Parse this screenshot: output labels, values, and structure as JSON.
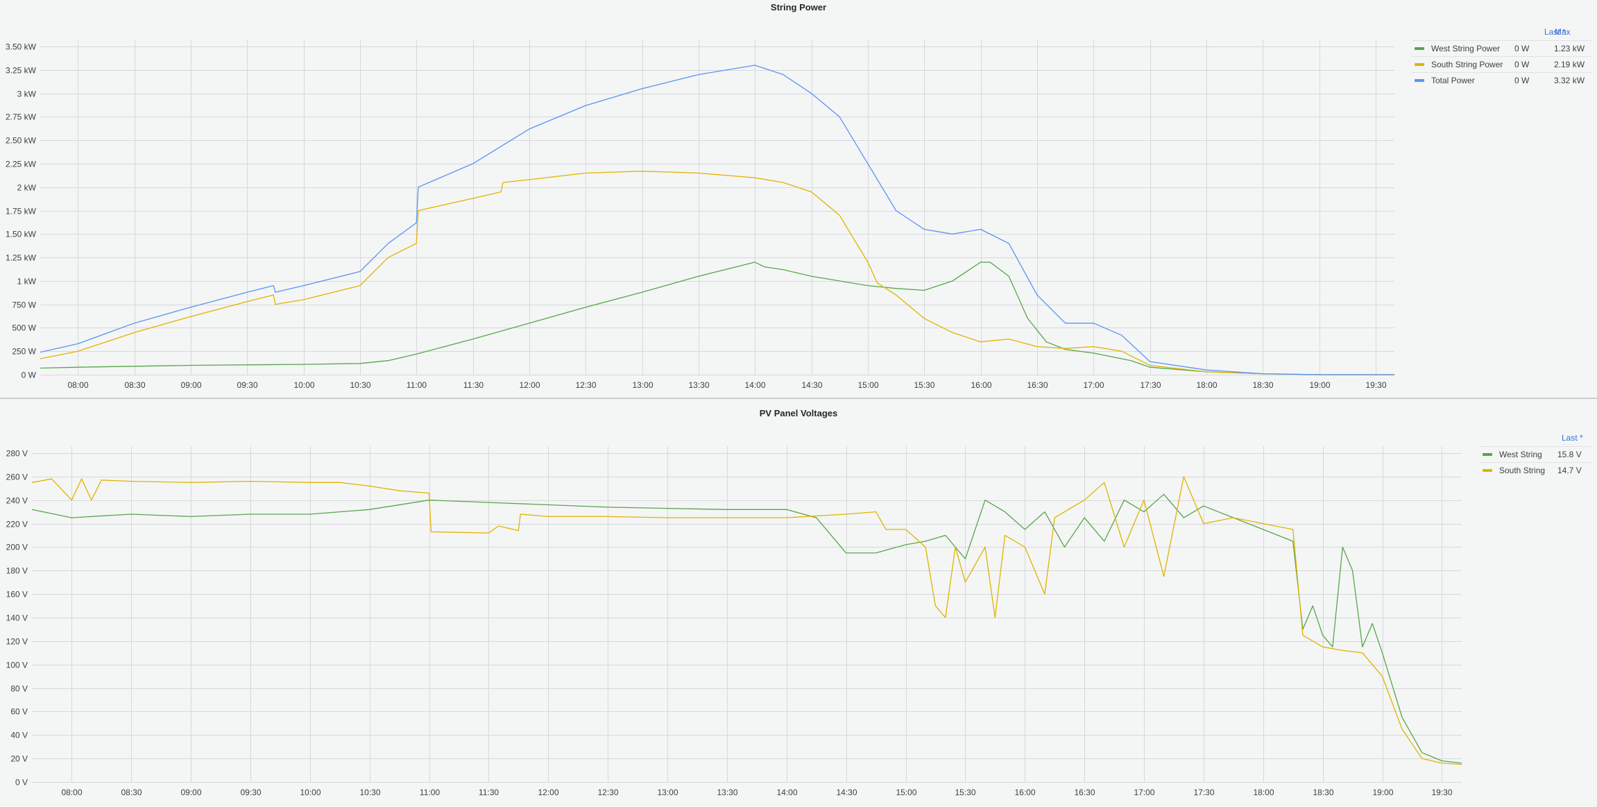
{
  "colors": {
    "west": "#56a64b",
    "south": "#e0b400",
    "total": "#5794f2",
    "grid": "#d6d8da",
    "header": "#3c73d6"
  },
  "legend_headers": {
    "last": "Last *",
    "max": "Max"
  },
  "chart_data": [
    {
      "type": "line",
      "title": "String Power",
      "xlabel": "",
      "ylabel": "",
      "x_unit": "time",
      "xlim": [
        "07:40",
        "19:40"
      ],
      "ylim": [
        0,
        3.5
      ],
      "y_ticks": [
        0,
        0.25,
        0.5,
        0.75,
        1,
        1.25,
        1.5,
        1.75,
        2,
        2.25,
        2.5,
        2.75,
        3,
        3.25,
        3.5
      ],
      "y_tick_labels": [
        "0 W",
        "250 W",
        "500 W",
        "750 W",
        "1 kW",
        "1.25 kW",
        "1.50 kW",
        "1.75 kW",
        "2 kW",
        "2.25 kW",
        "2.50 kW",
        "2.75 kW",
        "3 kW",
        "3.25 kW",
        "3.50 kW"
      ],
      "x_ticks": [
        "08:00",
        "08:30",
        "09:00",
        "09:30",
        "10:00",
        "10:30",
        "11:00",
        "11:30",
        "12:00",
        "12:30",
        "13:00",
        "13:30",
        "14:00",
        "14:30",
        "15:00",
        "15:30",
        "16:00",
        "16:30",
        "17:00",
        "17:30",
        "18:00",
        "18:30",
        "19:00",
        "19:30"
      ],
      "grid": true,
      "legend": {
        "placement": "right",
        "columns": [
          "Last *",
          "Max"
        ]
      },
      "series": [
        {
          "name": "West String Power",
          "color": "#56a64b",
          "last": "0 W",
          "max": "1.23 kW",
          "points": [
            [
              "07:40",
              0.07
            ],
            [
              "08:00",
              0.08
            ],
            [
              "09:00",
              0.1
            ],
            [
              "10:00",
              0.11
            ],
            [
              "10:30",
              0.12
            ],
            [
              "10:45",
              0.15
            ],
            [
              "11:00",
              0.22
            ],
            [
              "11:30",
              0.38
            ],
            [
              "12:00",
              0.55
            ],
            [
              "12:30",
              0.72
            ],
            [
              "13:00",
              0.88
            ],
            [
              "13:30",
              1.05
            ],
            [
              "13:50",
              1.15
            ],
            [
              "14:00",
              1.2
            ],
            [
              "14:05",
              1.15
            ],
            [
              "14:15",
              1.12
            ],
            [
              "14:30",
              1.05
            ],
            [
              "14:45",
              1.0
            ],
            [
              "15:00",
              0.95
            ],
            [
              "15:15",
              0.92
            ],
            [
              "15:30",
              0.9
            ],
            [
              "15:45",
              1.0
            ],
            [
              "16:00",
              1.2
            ],
            [
              "16:05",
              1.2
            ],
            [
              "16:15",
              1.05
            ],
            [
              "16:25",
              0.6
            ],
            [
              "16:35",
              0.35
            ],
            [
              "16:45",
              0.27
            ],
            [
              "17:00",
              0.23
            ],
            [
              "17:20",
              0.15
            ],
            [
              "17:30",
              0.08
            ],
            [
              "18:00",
              0.03
            ],
            [
              "18:30",
              0.01
            ],
            [
              "19:00",
              0.0
            ],
            [
              "19:40",
              0.0
            ]
          ]
        },
        {
          "name": "South String Power",
          "color": "#e0b400",
          "last": "0 W",
          "max": "2.19 kW",
          "points": [
            [
              "07:40",
              0.17
            ],
            [
              "08:00",
              0.25
            ],
            [
              "08:30",
              0.45
            ],
            [
              "09:00",
              0.62
            ],
            [
              "09:30",
              0.78
            ],
            [
              "09:44",
              0.85
            ],
            [
              "09:45",
              0.75
            ],
            [
              "10:00",
              0.8
            ],
            [
              "10:30",
              0.95
            ],
            [
              "10:45",
              1.25
            ],
            [
              "11:00",
              1.4
            ],
            [
              "11:01",
              1.75
            ],
            [
              "11:30",
              1.88
            ],
            [
              "11:45",
              1.95
            ],
            [
              "11:46",
              2.05
            ],
            [
              "12:00",
              2.08
            ],
            [
              "12:30",
              2.15
            ],
            [
              "13:00",
              2.17
            ],
            [
              "13:30",
              2.15
            ],
            [
              "14:00",
              2.1
            ],
            [
              "14:15",
              2.05
            ],
            [
              "14:30",
              1.95
            ],
            [
              "14:45",
              1.7
            ],
            [
              "15:00",
              1.2
            ],
            [
              "15:05",
              0.98
            ],
            [
              "15:15",
              0.85
            ],
            [
              "15:30",
              0.6
            ],
            [
              "15:45",
              0.45
            ],
            [
              "16:00",
              0.35
            ],
            [
              "16:15",
              0.38
            ],
            [
              "16:30",
              0.3
            ],
            [
              "16:45",
              0.28
            ],
            [
              "17:00",
              0.3
            ],
            [
              "17:15",
              0.25
            ],
            [
              "17:30",
              0.1
            ],
            [
              "18:00",
              0.03
            ],
            [
              "18:30",
              0.01
            ],
            [
              "19:00",
              0.0
            ],
            [
              "19:40",
              0.0
            ]
          ]
        },
        {
          "name": "Total Power",
          "color": "#5794f2",
          "last": "0 W",
          "max": "3.32 kW",
          "points": [
            [
              "07:40",
              0.24
            ],
            [
              "08:00",
              0.33
            ],
            [
              "08:30",
              0.55
            ],
            [
              "09:00",
              0.72
            ],
            [
              "09:30",
              0.88
            ],
            [
              "09:44",
              0.95
            ],
            [
              "09:45",
              0.88
            ],
            [
              "10:00",
              0.95
            ],
            [
              "10:30",
              1.1
            ],
            [
              "10:45",
              1.4
            ],
            [
              "11:00",
              1.62
            ],
            [
              "11:01",
              2.0
            ],
            [
              "11:30",
              2.25
            ],
            [
              "12:00",
              2.62
            ],
            [
              "12:30",
              2.87
            ],
            [
              "13:00",
              3.05
            ],
            [
              "13:30",
              3.2
            ],
            [
              "14:00",
              3.3
            ],
            [
              "14:15",
              3.2
            ],
            [
              "14:30",
              3.0
            ],
            [
              "14:45",
              2.75
            ],
            [
              "15:00",
              2.25
            ],
            [
              "15:15",
              1.75
            ],
            [
              "15:30",
              1.55
            ],
            [
              "15:45",
              1.5
            ],
            [
              "16:00",
              1.55
            ],
            [
              "16:15",
              1.4
            ],
            [
              "16:30",
              0.85
            ],
            [
              "16:45",
              0.55
            ],
            [
              "17:00",
              0.55
            ],
            [
              "17:15",
              0.42
            ],
            [
              "17:30",
              0.14
            ],
            [
              "18:00",
              0.05
            ],
            [
              "18:30",
              0.01
            ],
            [
              "19:00",
              0.0
            ],
            [
              "19:40",
              0.0
            ]
          ]
        }
      ]
    },
    {
      "type": "line",
      "title": "PV Panel Voltages",
      "xlabel": "",
      "ylabel": "",
      "x_unit": "time",
      "xlim": [
        "07:40",
        "19:40"
      ],
      "ylim": [
        0,
        280
      ],
      "y_ticks": [
        0,
        20,
        40,
        60,
        80,
        100,
        120,
        140,
        160,
        180,
        200,
        220,
        240,
        260,
        280
      ],
      "y_tick_labels": [
        "0 V",
        "20 V",
        "40 V",
        "60 V",
        "80 V",
        "100 V",
        "120 V",
        "140 V",
        "160 V",
        "180 V",
        "200 V",
        "220 V",
        "240 V",
        "260 V",
        "280 V"
      ],
      "x_ticks": [
        "08:00",
        "08:30",
        "09:00",
        "09:30",
        "10:00",
        "10:30",
        "11:00",
        "11:30",
        "12:00",
        "12:30",
        "13:00",
        "13:30",
        "14:00",
        "14:30",
        "15:00",
        "15:30",
        "16:00",
        "16:30",
        "17:00",
        "17:30",
        "18:00",
        "18:30",
        "19:00",
        "19:30"
      ],
      "grid": true,
      "legend": {
        "placement": "right",
        "columns": [
          "Last *"
        ]
      },
      "series": [
        {
          "name": "West String",
          "color": "#56a64b",
          "last": "15.8 V",
          "points": [
            [
              "07:40",
              232
            ],
            [
              "08:00",
              225
            ],
            [
              "08:30",
              228
            ],
            [
              "09:00",
              226
            ],
            [
              "09:30",
              228
            ],
            [
              "10:00",
              228
            ],
            [
              "10:30",
              232
            ],
            [
              "11:00",
              240
            ],
            [
              "11:30",
              238
            ],
            [
              "12:00",
              236
            ],
            [
              "12:30",
              234
            ],
            [
              "13:00",
              233
            ],
            [
              "13:30",
              232
            ],
            [
              "14:00",
              232
            ],
            [
              "14:15",
              225
            ],
            [
              "14:30",
              195
            ],
            [
              "14:45",
              195
            ],
            [
              "15:00",
              202
            ],
            [
              "15:10",
              205
            ],
            [
              "15:20",
              210
            ],
            [
              "15:30",
              190
            ],
            [
              "15:40",
              240
            ],
            [
              "15:50",
              230
            ],
            [
              "16:00",
              215
            ],
            [
              "16:10",
              230
            ],
            [
              "16:20",
              200
            ],
            [
              "16:30",
              225
            ],
            [
              "16:40",
              205
            ],
            [
              "16:50",
              240
            ],
            [
              "17:00",
              230
            ],
            [
              "17:10",
              245
            ],
            [
              "17:20",
              225
            ],
            [
              "17:30",
              235
            ],
            [
              "17:45",
              225
            ],
            [
              "18:00",
              215
            ],
            [
              "18:15",
              205
            ],
            [
              "18:20",
              130
            ],
            [
              "18:25",
              150
            ],
            [
              "18:30",
              125
            ],
            [
              "18:35",
              115
            ],
            [
              "18:40",
              200
            ],
            [
              "18:45",
              180
            ],
            [
              "18:50",
              115
            ],
            [
              "18:55",
              135
            ],
            [
              "19:00",
              110
            ],
            [
              "19:10",
              55
            ],
            [
              "19:20",
              25
            ],
            [
              "19:30",
              18
            ],
            [
              "19:40",
              16
            ]
          ]
        },
        {
          "name": "South String",
          "color": "#e0b400",
          "last": "14.7 V",
          "points": [
            [
              "07:40",
              255
            ],
            [
              "07:50",
              258
            ],
            [
              "08:00",
              240
            ],
            [
              "08:05",
              258
            ],
            [
              "08:10",
              240
            ],
            [
              "08:15",
              257
            ],
            [
              "08:30",
              256
            ],
            [
              "09:00",
              255
            ],
            [
              "09:30",
              256
            ],
            [
              "10:00",
              255
            ],
            [
              "10:15",
              255
            ],
            [
              "10:30",
              252
            ],
            [
              "10:45",
              248
            ],
            [
              "11:00",
              246
            ],
            [
              "11:01",
              213
            ],
            [
              "11:30",
              212
            ],
            [
              "11:35",
              218
            ],
            [
              "11:45",
              214
            ],
            [
              "11:46",
              228
            ],
            [
              "12:00",
              226
            ],
            [
              "12:30",
              226
            ],
            [
              "13:00",
              225
            ],
            [
              "13:30",
              225
            ],
            [
              "14:00",
              225
            ],
            [
              "14:30",
              228
            ],
            [
              "14:45",
              230
            ],
            [
              "14:50",
              215
            ],
            [
              "15:00",
              215
            ],
            [
              "15:10",
              200
            ],
            [
              "15:15",
              150
            ],
            [
              "15:20",
              140
            ],
            [
              "15:25",
              200
            ],
            [
              "15:30",
              170
            ],
            [
              "15:40",
              200
            ],
            [
              "15:45",
              140
            ],
            [
              "15:50",
              210
            ],
            [
              "16:00",
              200
            ],
            [
              "16:10",
              160
            ],
            [
              "16:15",
              225
            ],
            [
              "16:20",
              230
            ],
            [
              "16:30",
              240
            ],
            [
              "16:40",
              255
            ],
            [
              "16:50",
              200
            ],
            [
              "17:00",
              240
            ],
            [
              "17:10",
              175
            ],
            [
              "17:20",
              260
            ],
            [
              "17:30",
              220
            ],
            [
              "17:45",
              225
            ],
            [
              "18:00",
              220
            ],
            [
              "18:15",
              215
            ],
            [
              "18:20",
              125
            ],
            [
              "18:30",
              115
            ],
            [
              "18:40",
              112
            ],
            [
              "18:50",
              110
            ],
            [
              "19:00",
              90
            ],
            [
              "19:10",
              45
            ],
            [
              "19:20",
              20
            ],
            [
              "19:30",
              16
            ],
            [
              "19:40",
              15
            ]
          ]
        }
      ]
    }
  ]
}
